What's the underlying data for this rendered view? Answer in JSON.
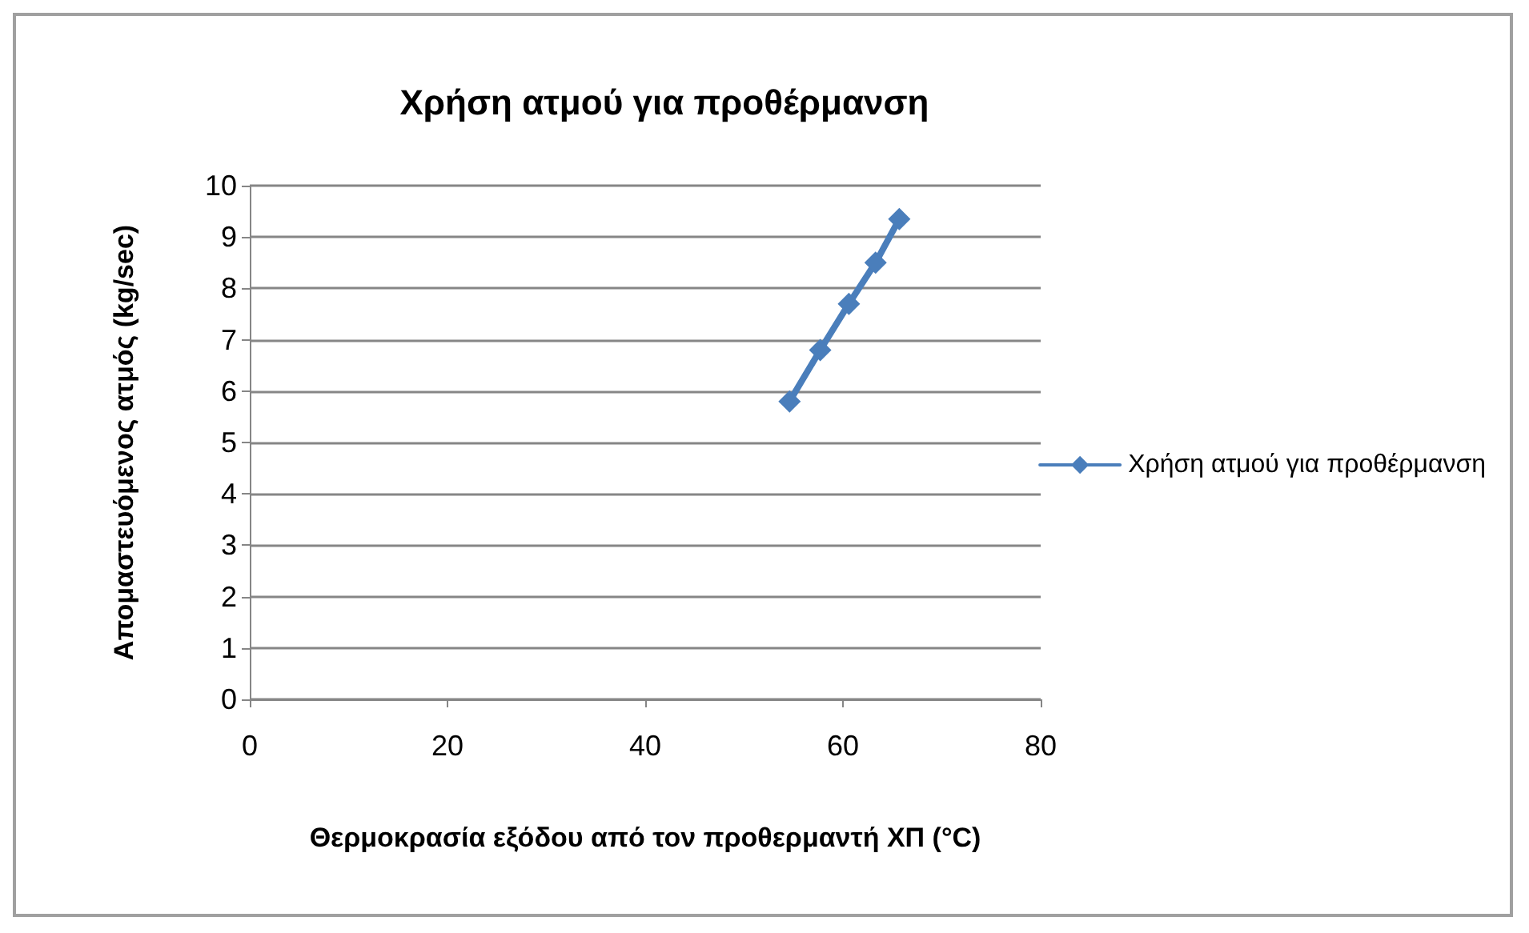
{
  "chart_data": {
    "type": "line",
    "title": "Χρήση ατμού για προθέρμανση",
    "xlabel": "Θερμοκρασία εξόδου από τον προθερμαντή ΧΠ (°C)",
    "ylabel": "Απομαστευόμενος ατμός (kg/sec)",
    "x": [
      54.6,
      57.7,
      60.6,
      63.3,
      65.7
    ],
    "series": [
      {
        "name": "Χρήση ατμού για προθέρμανση",
        "color": "#4a7ebb",
        "values": [
          5.8,
          6.8,
          7.7,
          8.5,
          9.35
        ]
      }
    ],
    "xlim": [
      0,
      80
    ],
    "xticks": [
      0,
      20,
      40,
      60,
      80
    ],
    "ylim": [
      0,
      10
    ],
    "yticks": [
      0,
      1,
      2,
      3,
      4,
      5,
      6,
      7,
      8,
      9,
      10
    ],
    "grid": "y",
    "legend": "right",
    "marker": "diamond",
    "line_style": "solid"
  }
}
